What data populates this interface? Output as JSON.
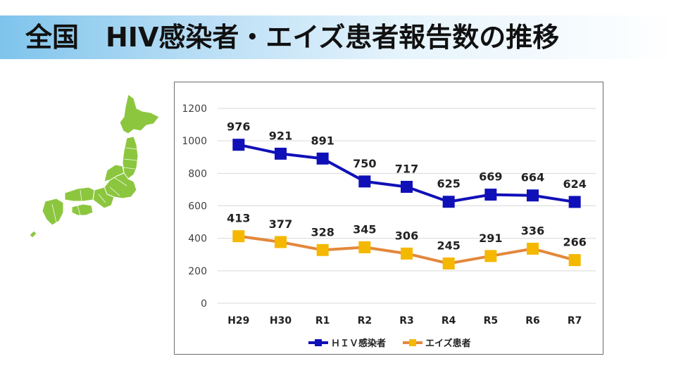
{
  "page": {
    "title": "全国　HIV感染者・エイズ患者報告数の推移"
  },
  "colors": {
    "hiv": "#1010b8",
    "aids": "#f5b800",
    "aids_line": "#e3883c",
    "map": "#8cc63f",
    "title_bar": "#7fc4ec"
  },
  "icons": {
    "map": "japan-map-icon"
  },
  "chart_data": {
    "type": "line",
    "categories": [
      "H29",
      "H30",
      "R1",
      "R2",
      "R3",
      "R4",
      "R5",
      "R6",
      "R7"
    ],
    "series": [
      {
        "name": "ＨＩＶ感染者",
        "values": [
          976,
          921,
          891,
          750,
          717,
          625,
          669,
          664,
          624
        ]
      },
      {
        "name": "エイズ患者",
        "values": [
          413,
          377,
          328,
          345,
          306,
          245,
          291,
          336,
          266
        ]
      }
    ],
    "ylim": [
      0,
      1200
    ],
    "yticks": [
      0,
      200,
      400,
      600,
      800,
      1000,
      1200
    ],
    "grid": true,
    "legend": "bottom",
    "data_labels": true
  }
}
